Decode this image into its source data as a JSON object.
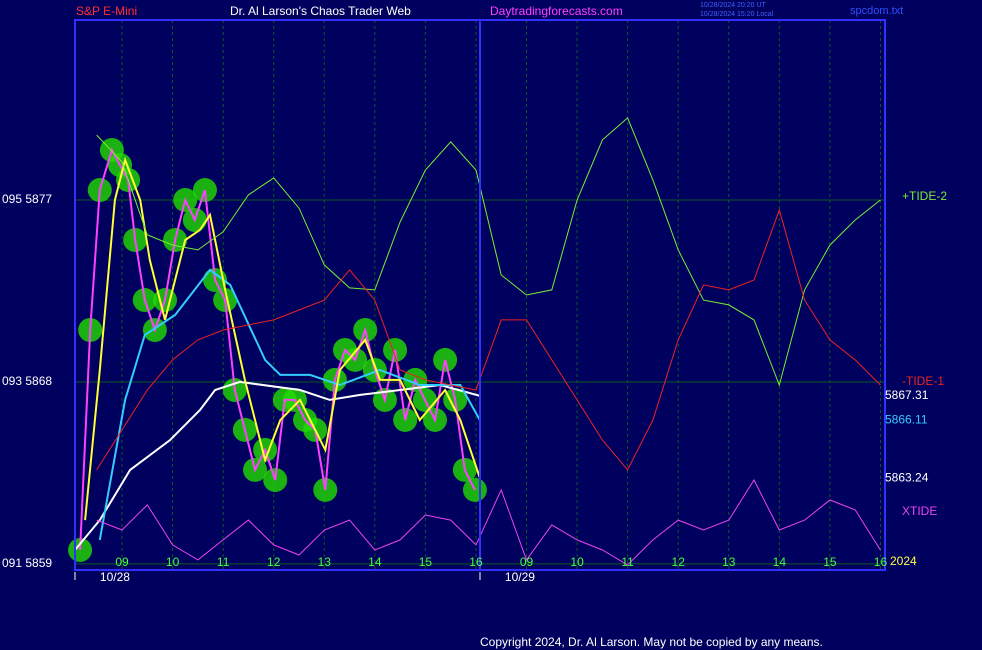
{
  "header": {
    "instrument": "S&P E-Mini",
    "title": "Dr. Al Larson's Chaos Trader Web",
    "site": "Daytradingforecasts.com",
    "timestamp_ut": "10/28/2024 20:20 UT",
    "timestamp_local": "10/28/2024 15:20 Local",
    "file": "spcdom.txt",
    "copyright": "Copyright 2024, Dr. Al Larson. May not be copied by any means.",
    "year": "2024"
  },
  "chart_data": {
    "type": "line",
    "xlim": [
      0.07,
      16.09
    ],
    "ylim": [
      5858.7,
      5885.9
    ],
    "grid": true,
    "yticks": [
      {
        "value": 5877,
        "label": "095 5877"
      },
      {
        "value": 5868,
        "label": "093 5868"
      },
      {
        "value": 5859,
        "label": "091 5859"
      }
    ],
    "xticks": [
      {
        "value": 1,
        "label": "09"
      },
      {
        "value": 2,
        "label": "10"
      },
      {
        "value": 3,
        "label": "11"
      },
      {
        "value": 4,
        "label": "12"
      },
      {
        "value": 5,
        "label": "13"
      },
      {
        "value": 6,
        "label": "14"
      },
      {
        "value": 7,
        "label": "15"
      },
      {
        "value": 8,
        "label": "16"
      },
      {
        "value": 9,
        "label": "09"
      },
      {
        "value": 10,
        "label": "10"
      },
      {
        "value": 11,
        "label": "11"
      },
      {
        "value": 12,
        "label": "12"
      },
      {
        "value": 13,
        "label": "13"
      },
      {
        "value": 14,
        "label": "14"
      },
      {
        "value": 15,
        "label": "15"
      },
      {
        "value": 16,
        "label": "16"
      }
    ],
    "date_labels": [
      {
        "value": 0.86,
        "label": "10/28"
      },
      {
        "value": 8.87,
        "label": "10/29"
      }
    ],
    "series": [
      {
        "color": "#ff40ff",
        "marker_color": "#22dd00",
        "x": [
          0.17,
          0.37,
          0.56,
          0.8,
          0.96,
          1.12,
          1.26,
          1.45,
          1.65,
          1.85,
          2.05,
          2.25,
          2.44,
          2.64,
          2.84,
          3.04,
          3.23,
          3.43,
          3.63,
          3.83,
          4.03,
          4.22,
          4.42,
          4.62,
          4.82,
          5.02,
          5.21,
          5.41,
          5.61,
          5.81,
          6.0,
          6.2,
          6.4,
          6.6,
          6.8,
          6.99,
          7.19,
          7.39,
          7.59,
          7.78,
          7.98
        ],
        "values": [
          5859.69,
          5870.57,
          5877.49,
          5879.47,
          5878.73,
          5877.99,
          5875.02,
          5872.05,
          5870.57,
          5872.05,
          5875.02,
          5877,
          5876.01,
          5877.49,
          5873.04,
          5872.05,
          5867.6,
          5865.63,
          5863.65,
          5864.64,
          5863.15,
          5867.11,
          5867.11,
          5866.12,
          5865.63,
          5862.66,
          5868.1,
          5869.58,
          5869.09,
          5870.57,
          5868.59,
          5867.11,
          5869.58,
          5866.12,
          5868.1,
          5867.11,
          5866.12,
          5869.09,
          5867.11,
          5863.65,
          5862.66
        ]
      },
      {
        "color": "#ffffff",
        "last_label": "5867.31",
        "x": [
          0.07,
          0.56,
          1.16,
          1.95,
          2.54,
          2.84,
          3.33,
          4.52,
          5.11,
          5.71,
          6.5,
          7.29,
          8.08
        ],
        "values": [
          5859.69,
          5861.17,
          5863.65,
          5865.13,
          5866.61,
          5867.6,
          5868,
          5867.6,
          5867.11,
          5867.36,
          5867.6,
          5867.85,
          5867.31
        ]
      },
      {
        "color": "#33ccff",
        "last_label": "5866.11",
        "x": [
          0.56,
          1.06,
          1.45,
          2.05,
          2.74,
          3.14,
          3.83,
          4.13,
          4.72,
          5.31,
          6.1,
          6.89,
          7.69,
          8.08
        ],
        "values": [
          5860.19,
          5867.11,
          5870.32,
          5871.31,
          5873.54,
          5872.8,
          5869.09,
          5868.35,
          5868.35,
          5867.85,
          5868.59,
          5867.85,
          5867.85,
          5866.11
        ]
      },
      {
        "color": "#ffff33",
        "last_label": "5863.24",
        "x": [
          0.27,
          0.56,
          0.86,
          1.06,
          1.36,
          1.55,
          1.85,
          2.25,
          2.54,
          2.74,
          3.04,
          3.43,
          3.83,
          4.13,
          4.52,
          5.02,
          5.31,
          5.81,
          6.1,
          6.5,
          6.89,
          7.39,
          7.69,
          8.08
        ],
        "values": [
          5861.17,
          5868.59,
          5877,
          5878.98,
          5877,
          5874.03,
          5871.07,
          5875.02,
          5875.52,
          5876.26,
          5872.55,
          5868.1,
          5864.14,
          5866.12,
          5867.11,
          5864.64,
          5868.59,
          5870.08,
          5868.1,
          5868.1,
          5866.12,
          5867.6,
          5866.12,
          5863.24
        ]
      },
      {
        "name": "+TIDE-2",
        "color": "#77ee33",
        "x": [
          0.5,
          1,
          1.5,
          2,
          2.5,
          3,
          3.5,
          4,
          4.5,
          5,
          5.5,
          6,
          6.5,
          7,
          7.5,
          8,
          8.5,
          9,
          9.5,
          10,
          10.5,
          11,
          11.5,
          12,
          12.5,
          13,
          13.5,
          14,
          14.5,
          15,
          15.5,
          16
        ],
        "values": [
          5880.21,
          5878.88,
          5875.27,
          5874.77,
          5874.53,
          5875.42,
          5877.25,
          5878.09,
          5876.6,
          5873.79,
          5872.65,
          5872.55,
          5875.91,
          5878.48,
          5879.87,
          5878.48,
          5873.29,
          5872.3,
          5872.55,
          5877,
          5879.97,
          5881.06,
          5877.99,
          5874.53,
          5872.05,
          5871.81,
          5871.07,
          5867.85,
          5872.55,
          5874.77,
          5876.01,
          5877
        ]
      },
      {
        "name": "-TIDE-1",
        "color": "#ee2222",
        "x": [
          0.5,
          1,
          1.5,
          2,
          2.5,
          3,
          3.5,
          4,
          4.5,
          5,
          5.5,
          6,
          6.5,
          7,
          7.5,
          8,
          8.5,
          9,
          9.5,
          10,
          10.5,
          11,
          11.5,
          12,
          12.5,
          13,
          13.5,
          14,
          14.5,
          15,
          15.5,
          16
        ],
        "values": [
          5863.65,
          5865.63,
          5867.6,
          5869.09,
          5870.08,
          5870.57,
          5870.82,
          5871.07,
          5871.56,
          5872.05,
          5873.54,
          5872.05,
          5868.59,
          5868.1,
          5867.85,
          5867.6,
          5871.07,
          5871.07,
          5869.09,
          5867.11,
          5865.13,
          5863.65,
          5866.12,
          5870.08,
          5872.8,
          5872.55,
          5873.04,
          5876.51,
          5872.05,
          5870.08,
          5869.09,
          5867.85
        ]
      },
      {
        "name": "XTIDE",
        "color": "#ee44ee",
        "x": [
          0.5,
          1,
          1.5,
          2,
          2.5,
          3,
          3.5,
          4,
          4.5,
          5,
          5.5,
          6,
          6.5,
          7,
          7.5,
          8,
          8.5,
          9,
          9.5,
          10,
          10.5,
          11,
          11.5,
          12,
          12.5,
          13,
          13.5,
          14,
          14.5,
          15,
          15.5,
          16
        ],
        "values": [
          5861.17,
          5860.68,
          5861.92,
          5859.94,
          5859.2,
          5860.19,
          5861.17,
          5859.94,
          5859.44,
          5860.68,
          5861.17,
          5859.69,
          5860.19,
          5861.42,
          5861.17,
          5859.94,
          5862.66,
          5859.2,
          5860.93,
          5860.19,
          5859.69,
          5858.95,
          5860.19,
          5861.17,
          5860.68,
          5861.17,
          5863.15,
          5860.68,
          5861.17,
          5862.16,
          5861.67,
          5859.69
        ]
      }
    ]
  }
}
